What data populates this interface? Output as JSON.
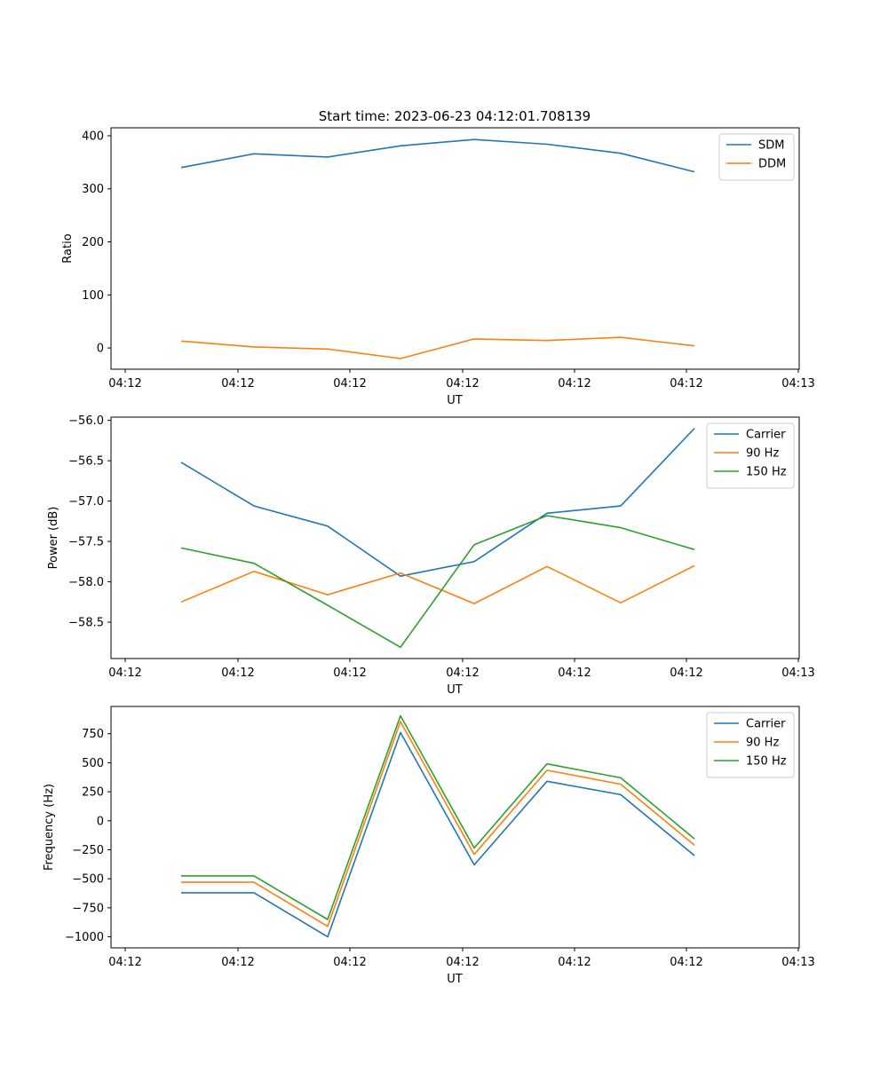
{
  "figure_title": "Start time: 2023-06-23 04:12:01.708139",
  "chart_data": [
    {
      "type": "line",
      "title": "Start time: 2023-06-23 04:12:01.708139",
      "xlabel": "UT",
      "ylabel": "Ratio",
      "x_ticks": [
        "04:12",
        "04:12",
        "04:12",
        "04:12",
        "04:12",
        "04:12",
        "04:13"
      ],
      "y_ticks": [
        0,
        100,
        200,
        300,
        400
      ],
      "ylim": [
        -40,
        415
      ],
      "legend_position": "top-right",
      "grid": false,
      "series": [
        {
          "name": "SDM",
          "color": "#1f77b4",
          "values": [
            340,
            366,
            360,
            381,
            393,
            384,
            367,
            332
          ]
        },
        {
          "name": "DDM",
          "color": "#ff7f0e",
          "values": [
            13,
            2,
            -2,
            -20,
            17,
            14,
            20,
            4
          ]
        }
      ]
    },
    {
      "type": "line",
      "title": "",
      "xlabel": "UT",
      "ylabel": "Power (dB)",
      "x_ticks": [
        "04:12",
        "04:12",
        "04:12",
        "04:12",
        "04:12",
        "04:12",
        "04:13"
      ],
      "y_ticks": [
        -56.0,
        -56.5,
        -57.0,
        -57.5,
        -58.0,
        -58.5
      ],
      "ylim": [
        -58.95,
        -55.96
      ],
      "legend_position": "top-right",
      "grid": false,
      "series": [
        {
          "name": "Carrier",
          "color": "#1f77b4",
          "values": [
            -56.52,
            -57.06,
            -57.31,
            -57.93,
            -57.75,
            -57.15,
            -57.06,
            -56.1
          ]
        },
        {
          "name": "90 Hz",
          "color": "#ff7f0e",
          "values": [
            -58.25,
            -57.87,
            -58.16,
            -57.89,
            -58.27,
            -57.81,
            -58.26,
            -57.8
          ]
        },
        {
          "name": "150 Hz",
          "color": "#2ca02c",
          "values": [
            -57.58,
            -57.77,
            -58.29,
            -58.81,
            -57.54,
            -57.18,
            -57.33,
            -57.6
          ]
        }
      ]
    },
    {
      "type": "line",
      "title": "",
      "xlabel": "UT",
      "ylabel": "Frequency (Hz)",
      "x_ticks": [
        "04:12",
        "04:12",
        "04:12",
        "04:12",
        "04:12",
        "04:12",
        "04:13"
      ],
      "y_ticks": [
        750,
        500,
        250,
        0,
        -250,
        -500,
        -750,
        -1000
      ],
      "ylim": [
        -1095,
        985
      ],
      "legend_position": "top-right",
      "grid": false,
      "series": [
        {
          "name": "Carrier",
          "color": "#1f77b4",
          "values": [
            -620,
            -620,
            -1000,
            760,
            -380,
            340,
            225,
            -300
          ]
        },
        {
          "name": "90 Hz",
          "color": "#ff7f0e",
          "values": [
            -530,
            -530,
            -910,
            855,
            -290,
            435,
            315,
            -210
          ]
        },
        {
          "name": "150 Hz",
          "color": "#2ca02c",
          "values": [
            -475,
            -475,
            -850,
            905,
            -235,
            490,
            370,
            -155
          ]
        }
      ]
    }
  ]
}
